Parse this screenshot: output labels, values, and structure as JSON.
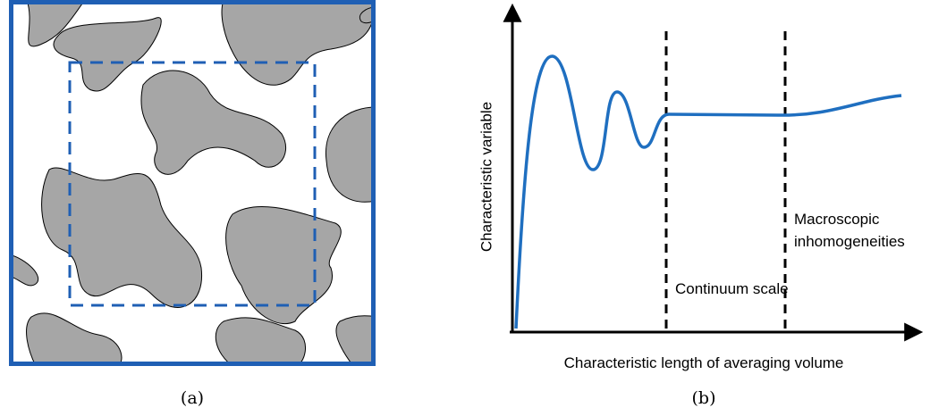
{
  "panels": [
    {
      "caption": "(a)"
    },
    {
      "caption": "(b)",
      "y_axis_label": "Characteristic variable",
      "x_axis_label": "Characteristic length of averaging volume",
      "annotations": [
        {
          "lines": [
            "Continuum scale"
          ]
        },
        {
          "lines": [
            "Macroscopic",
            "inhomogeneities"
          ]
        }
      ]
    }
  ]
}
